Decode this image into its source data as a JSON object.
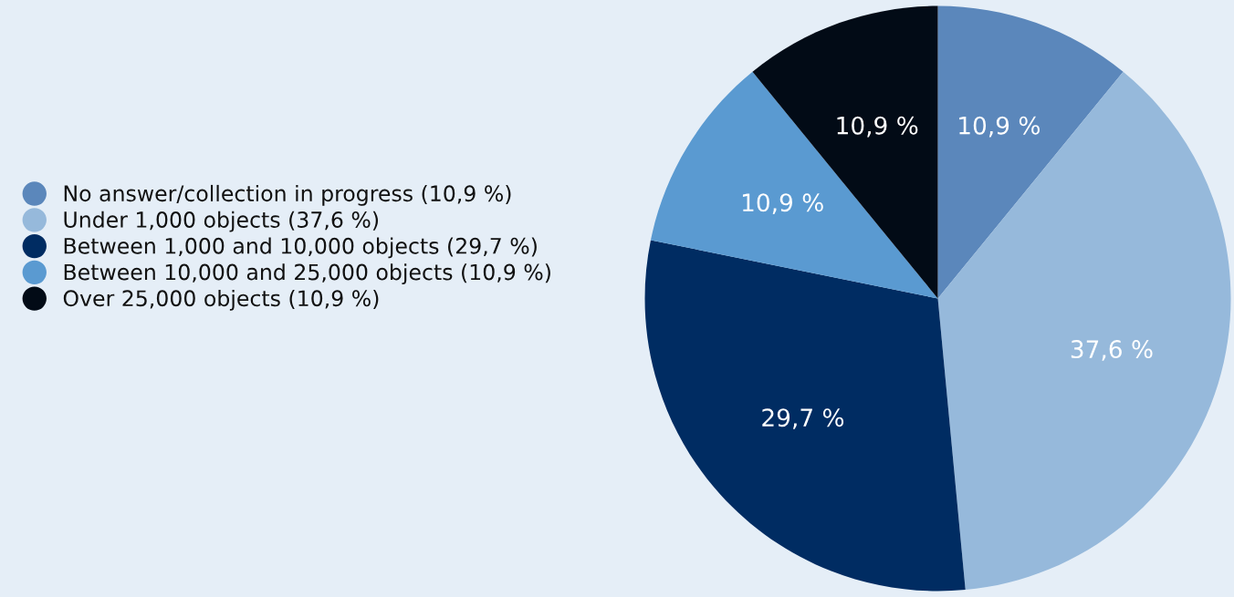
{
  "chart_data": {
    "type": "pie",
    "categories": [
      "No answer/collection in progress (10,9 %)",
      "Under 1,000 objects (37,6 %)",
      "Between 1,000 and 10,000 objects (29,7 %)",
      "Between 10,000 and 25,000 objects (10,9 %)",
      "Over 25,000 objects (10,9 %)"
    ],
    "values": [
      10.9,
      37.6,
      29.7,
      10.9,
      10.9
    ],
    "value_labels": [
      "10,9 %",
      "37,6 %",
      "29,7 %",
      "10,9 %",
      "10,9 %"
    ],
    "colors": [
      "#5b87bb",
      "#96b9db",
      "#002c62",
      "#5a9ad1",
      "#020b16"
    ],
    "legend": "left"
  }
}
